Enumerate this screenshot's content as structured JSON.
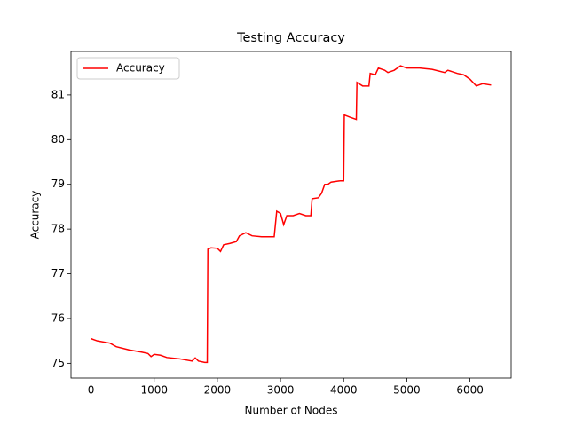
{
  "chart_data": {
    "type": "line",
    "title": "Testing Accuracy",
    "x_label": "Number of Nodes",
    "y_label": "Accuracy",
    "x": [
      0,
      100,
      300,
      400,
      600,
      800,
      900,
      950,
      1000,
      1100,
      1200,
      1400,
      1600,
      1650,
      1700,
      1800,
      1840,
      1850,
      1900,
      2000,
      2050,
      2100,
      2200,
      2300,
      2350,
      2450,
      2550,
      2700,
      2900,
      2940,
      3000,
      3050,
      3100,
      3200,
      3300,
      3400,
      3480,
      3500,
      3600,
      3650,
      3700,
      3750,
      3800,
      3950,
      4000,
      4010,
      4100,
      4200,
      4210,
      4300,
      4400,
      4420,
      4500,
      4550,
      4650,
      4700,
      4800,
      4900,
      5000,
      5200,
      5400,
      5600,
      5650,
      5800,
      5900,
      6000,
      6100,
      6200,
      6335
    ],
    "series": [
      {
        "name": "Accuracy",
        "color": "#ff0000",
        "values": [
          75.55,
          75.5,
          75.45,
          75.37,
          75.3,
          75.25,
          75.22,
          75.15,
          75.2,
          75.18,
          75.13,
          75.1,
          75.05,
          75.12,
          75.05,
          75.02,
          75.02,
          77.55,
          77.58,
          77.57,
          77.5,
          77.65,
          77.68,
          77.72,
          77.85,
          77.92,
          77.85,
          77.83,
          77.83,
          78.4,
          78.35,
          78.1,
          78.3,
          78.3,
          78.35,
          78.3,
          78.3,
          78.68,
          78.7,
          78.8,
          79.0,
          79.0,
          79.05,
          79.08,
          79.08,
          80.55,
          80.5,
          80.45,
          81.28,
          81.2,
          81.2,
          81.48,
          81.45,
          81.6,
          81.55,
          81.5,
          81.55,
          81.65,
          81.6,
          81.6,
          81.57,
          81.5,
          81.55,
          81.48,
          81.45,
          81.35,
          81.2,
          81.25,
          81.22
        ]
      }
    ],
    "xlim": [
      -317,
      6652
    ],
    "ylim": [
      74.67,
      81.97
    ],
    "xticks": [
      0,
      1000,
      2000,
      3000,
      4000,
      5000,
      6000
    ],
    "yticks": [
      75,
      76,
      77,
      78,
      79,
      80,
      81
    ],
    "legend": "upper left",
    "grid": false
  }
}
